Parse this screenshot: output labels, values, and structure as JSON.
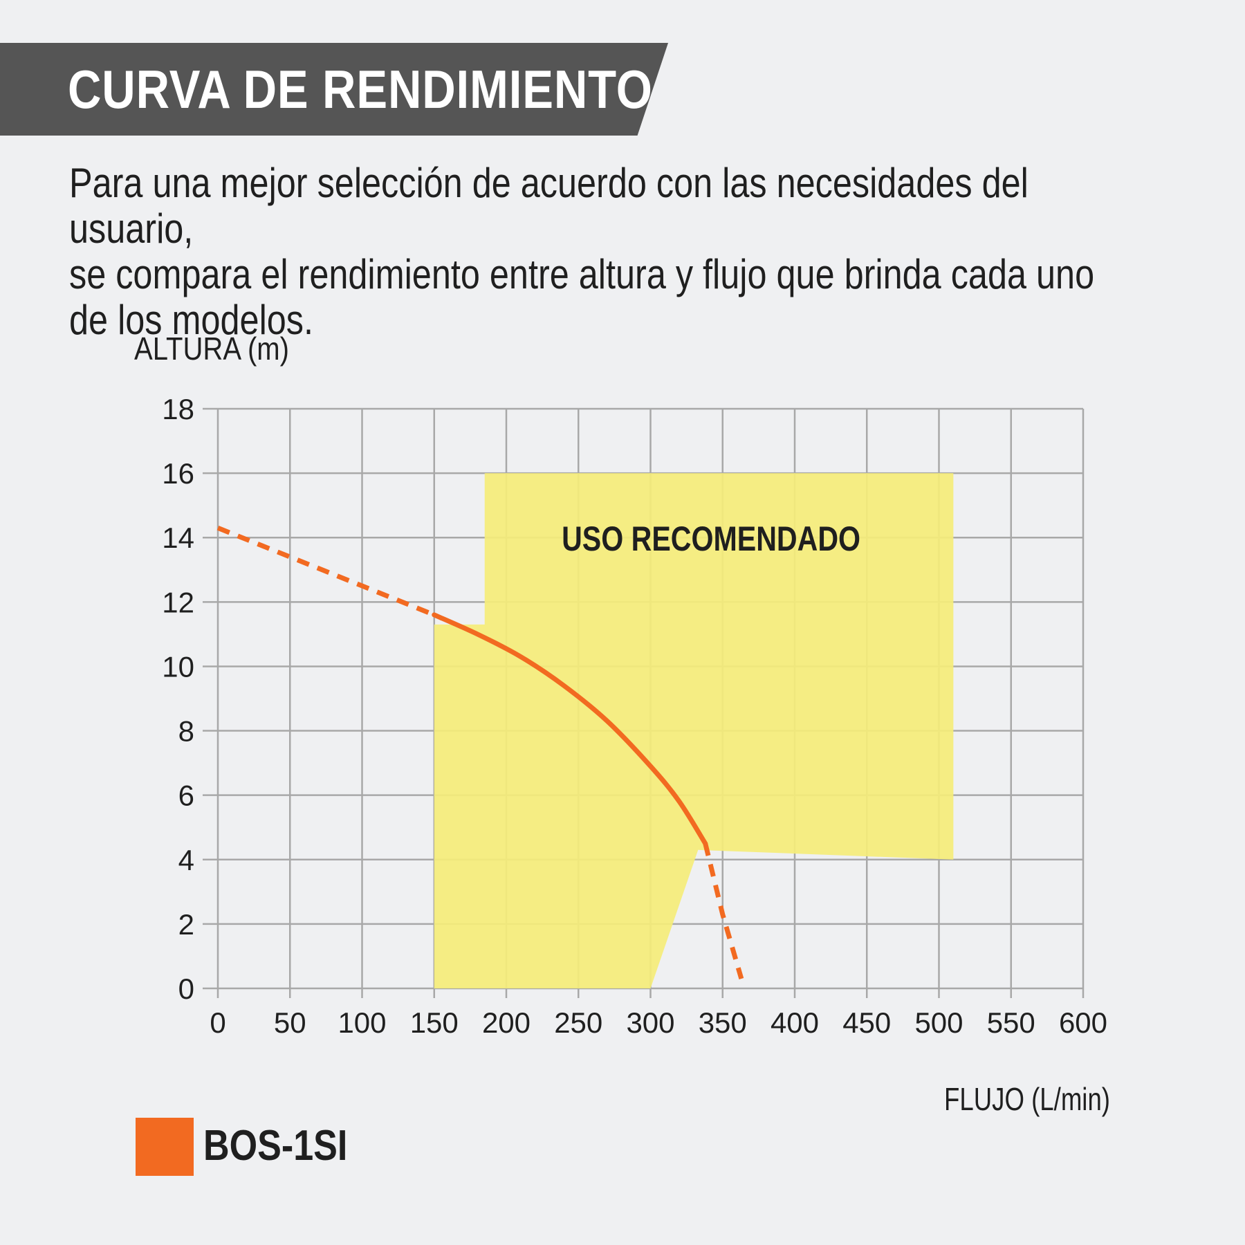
{
  "header": {
    "title": "CURVA DE RENDIMIENTO"
  },
  "intro": {
    "lines": [
      "Para una mejor selección de acuerdo con las necesidades del usuario,",
      "se compara el rendimiento entre altura y flujo que brinda cada uno",
      "de los modelos."
    ]
  },
  "colors": {
    "banner": "#555555",
    "region": "#f5ed7a",
    "curve": "#f26a21",
    "grid": "#a8a8a8",
    "background": "#eff0f2"
  },
  "chart_data": {
    "type": "line",
    "xlabel": "FLUJO (L/min)",
    "ylabel": "ALTURA (m)",
    "xlim": [
      0,
      600
    ],
    "ylim": [
      0,
      18
    ],
    "xticks": [
      0,
      50,
      100,
      150,
      200,
      250,
      300,
      350,
      400,
      450,
      500,
      550,
      600
    ],
    "yticks": [
      0,
      2,
      4,
      6,
      8,
      10,
      12,
      14,
      16,
      18
    ],
    "grid": true,
    "region": {
      "label": "USO RECOMENDADO",
      "polygon": [
        [
          150,
          0
        ],
        [
          300,
          0
        ],
        [
          333,
          4.3
        ],
        [
          510,
          4.0
        ],
        [
          510,
          16
        ],
        [
          185,
          16
        ],
        [
          185,
          11.3
        ],
        [
          150,
          11.3
        ]
      ]
    },
    "series": [
      {
        "name": "BOS-1SI",
        "color": "#f26a21",
        "segments": [
          {
            "style": "dashed",
            "x": [
              0,
              50,
              100,
              150
            ],
            "y": [
              14.3,
              13.4,
              12.5,
              11.6
            ]
          },
          {
            "style": "solid",
            "x": [
              150,
              180,
              210,
              240,
              270,
              300,
              320,
              338
            ],
            "y": [
              11.6,
              11.0,
              10.3,
              9.4,
              8.3,
              6.9,
              5.8,
              4.5
            ]
          },
          {
            "style": "dashed",
            "x": [
              338,
              350,
              363
            ],
            "y": [
              4.5,
              2.3,
              0.3
            ]
          }
        ]
      }
    ]
  }
}
